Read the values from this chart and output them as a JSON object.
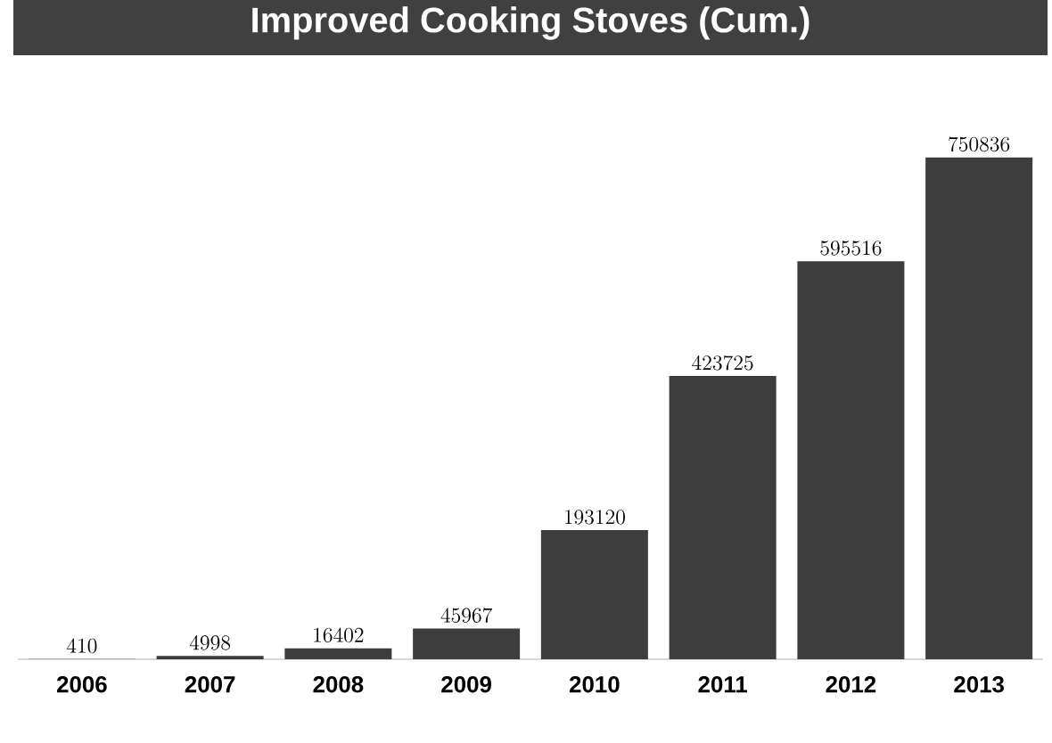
{
  "chart_data": {
    "type": "bar",
    "title": "Improved Cooking Stoves (Cum.)",
    "categories": [
      "2006",
      "2007",
      "2008",
      "2009",
      "2010",
      "2011",
      "2012",
      "2013"
    ],
    "values": [
      410,
      4998,
      16402,
      45967,
      193120,
      423725,
      595516,
      750836
    ],
    "color": "#3d3d3d",
    "data_labels": true
  }
}
